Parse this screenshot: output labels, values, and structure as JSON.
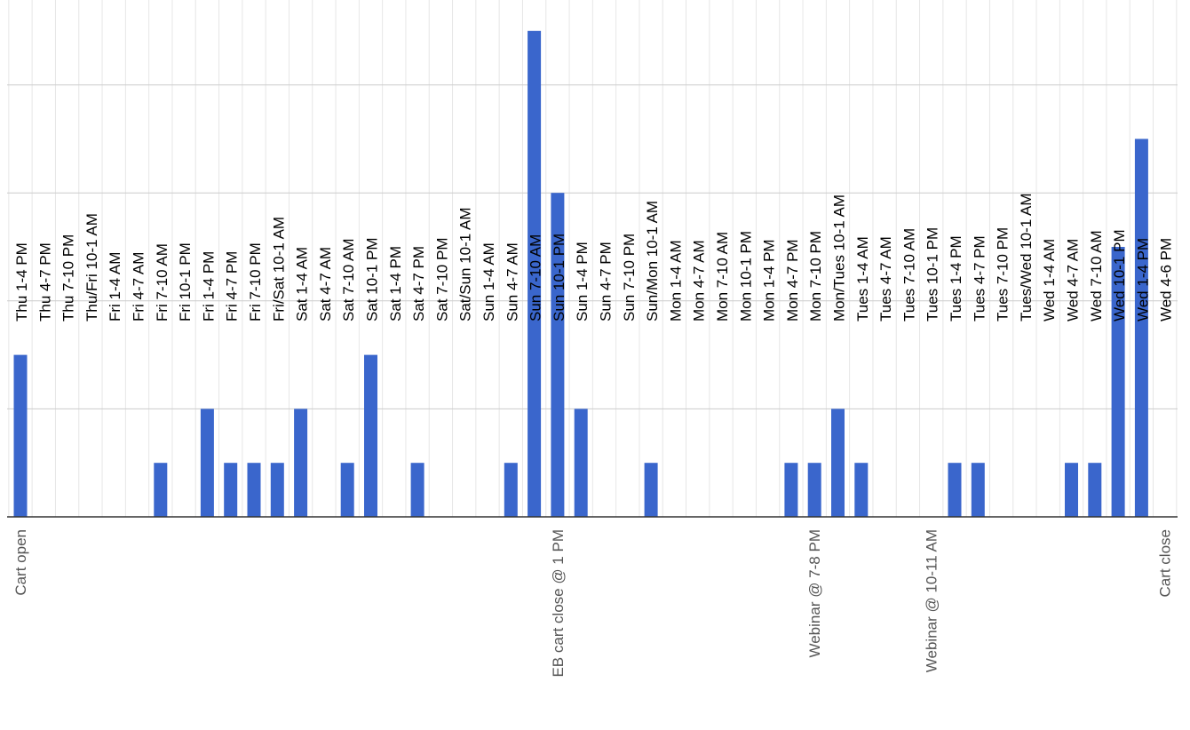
{
  "chart_data": {
    "type": "bar",
    "categories": [
      "Thu 1-4 PM",
      "Thu 4-7 PM",
      "Thu 7-10 PM",
      "Thu/Fri 10-1 AM",
      "Fri 1-4 AM",
      "Fri 4-7 AM",
      "Fri 7-10 AM",
      "Fri 10-1 PM",
      "Fri 1-4 PM",
      "Fri 4-7 PM",
      "Fri 7-10 PM",
      "Fri/Sat 10-1 AM",
      "Sat 1-4 AM",
      "Sat 4-7 AM",
      "Sat 7-10 AM",
      "Sat 10-1 PM",
      "Sat 1-4 PM",
      "Sat 4-7 PM",
      "Sat 7-10 PM",
      "Sat/Sun 10-1 AM",
      "Sun 1-4 AM",
      "Sun 4-7 AM",
      "Sun 7-10 AM",
      "Sun 10-1 PM",
      "Sun 1-4 PM",
      "Sun 4-7 PM",
      "Sun 7-10 PM",
      "Sun/Mon 10-1 AM",
      "Mon 1-4 AM",
      "Mon 4-7 AM",
      "Mon 7-10 AM",
      "Mon 10-1 PM",
      "Mon 1-4 PM",
      "Mon 4-7 PM",
      "Mon 7-10 PM",
      "Mon/Tues 10-1 AM",
      "Tues 1-4 AM",
      "Tues 4-7 AM",
      "Tues 7-10 AM",
      "Tues 10-1 PM",
      "Tues 1-4 PM",
      "Tues 4-7 PM",
      "Tues 7-10 PM",
      "Tues/Wed 10-1 AM",
      "Wed 1-4 AM",
      "Wed 4-7 AM",
      "Wed 7-10 AM",
      "Wed 10-1 PM",
      "Wed 1-4 PM",
      "Wed 4-6 PM"
    ],
    "values": [
      3,
      0,
      0,
      0,
      0,
      0,
      1,
      0,
      2,
      1,
      1,
      1,
      2,
      0,
      1,
      3,
      0,
      1,
      0,
      0,
      0,
      1,
      9,
      6,
      2,
      0,
      0,
      1,
      0,
      0,
      0,
      0,
      0,
      1,
      1,
      2,
      1,
      0,
      0,
      0,
      1,
      1,
      0,
      0,
      0,
      1,
      1,
      5,
      7,
      0
    ],
    "annotations": [
      {
        "index": 0,
        "text": "Cart open"
      },
      {
        "index": 23,
        "text": "EB cart close @ 1 PM"
      },
      {
        "index": 34,
        "text": "Webinar @ 7-8 PM"
      },
      {
        "index": 39,
        "text": "Webinar @ 10-11 AM"
      },
      {
        "index": 49,
        "text": "Cart close"
      }
    ],
    "title": "",
    "xlabel": "",
    "ylabel": "",
    "ylim": [
      0,
      9
    ],
    "grid": true,
    "colors": {
      "bar": "#3a66cc",
      "grid": "#cccccc",
      "baseline": "#333333"
    }
  }
}
